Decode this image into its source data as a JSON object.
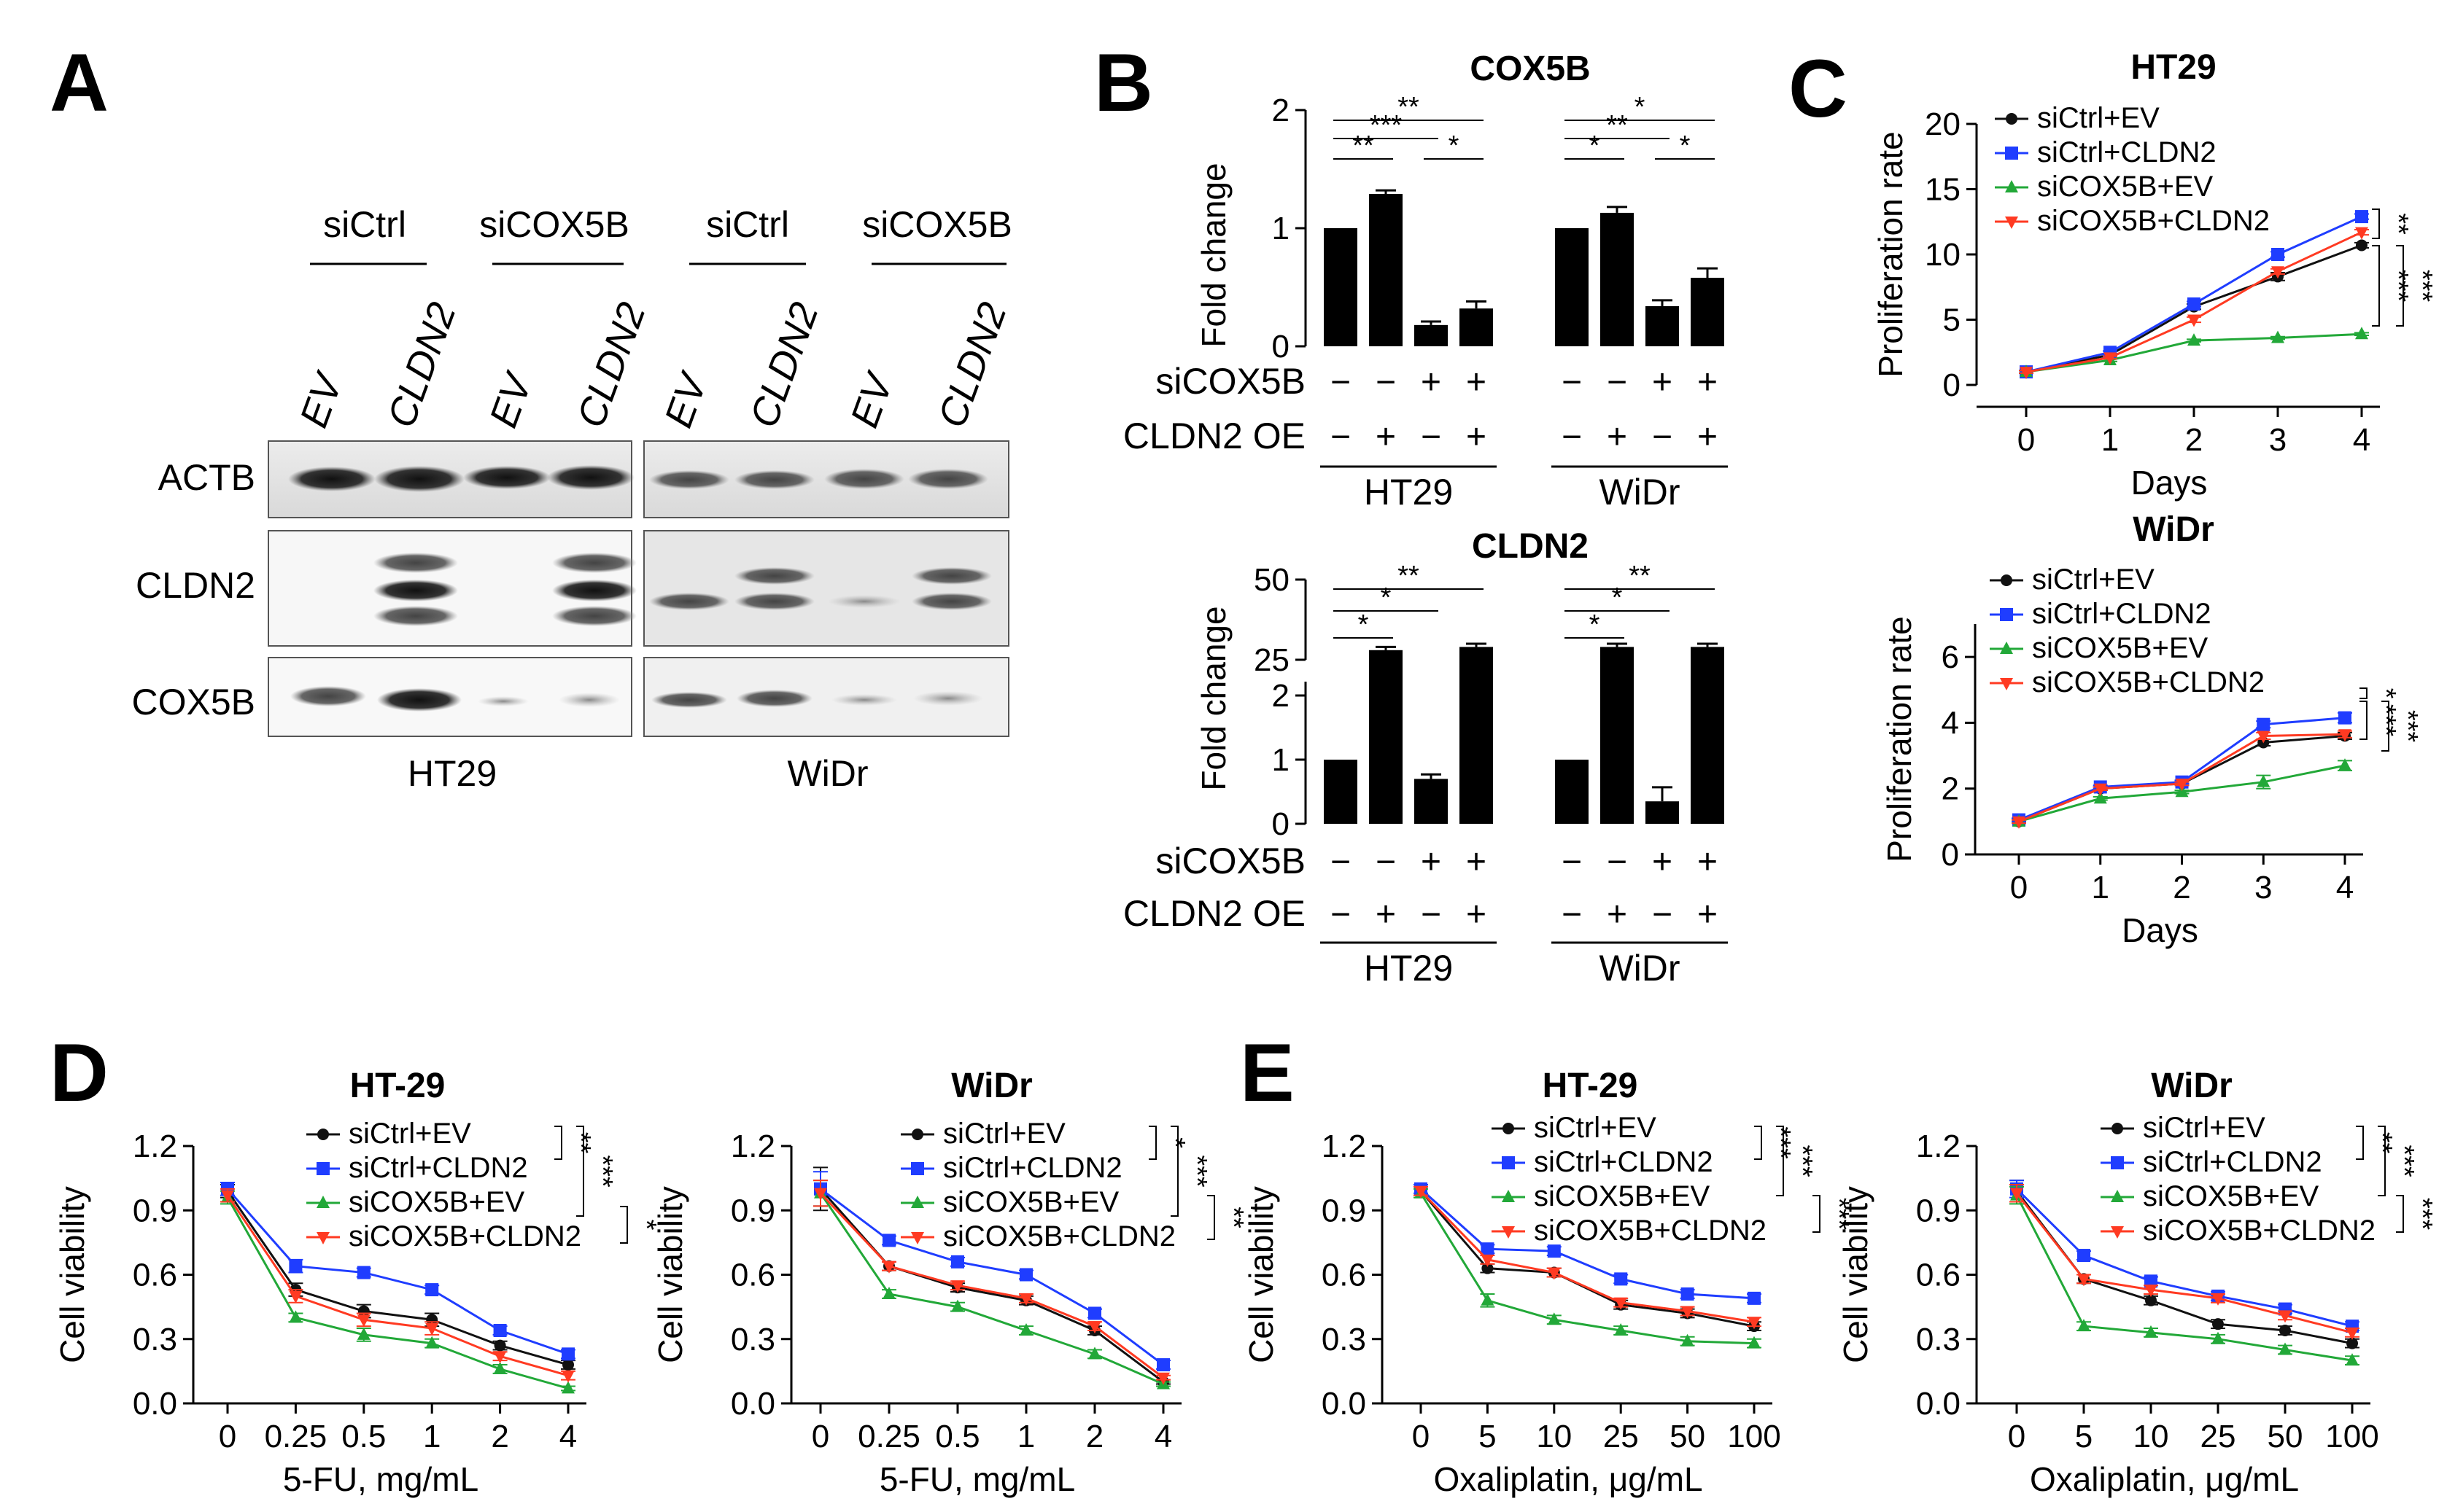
{
  "colors": {
    "siCtrl_EV": "#111111",
    "siCtrl_CLDN2": "#1f3dff",
    "siCOX5B_EV": "#22a838",
    "siCOX5B_CLDN2": "#ff3a22",
    "bar": "#000000"
  },
  "panel_labels": [
    "A",
    "B",
    "C",
    "D",
    "E"
  ],
  "series_names": [
    "siCtrl+EV",
    "siCtrl+CLDN2",
    "siCOX5B+EV",
    "siCOX5B+CLDN2"
  ],
  "blot": {
    "groups": [
      "siCtrl",
      "siCOX5B",
      "siCtrl",
      "siCOX5B"
    ],
    "lanes": [
      "EV",
      "CLDN2",
      "EV",
      "CLDN2",
      "EV",
      "CLDN2",
      "EV",
      "CLDN2"
    ],
    "rows": [
      "ACTB",
      "CLDN2",
      "COX5B"
    ],
    "cell_lines": [
      "HT29",
      "WiDr"
    ]
  },
  "chart_data": [
    {
      "id": "B1",
      "type": "bar",
      "title": "COX5B",
      "ylabel": "Fold change",
      "ylim": [
        0,
        2
      ],
      "yticks": [
        "0",
        "1",
        "2"
      ],
      "groups": [
        {
          "name": "HT29",
          "values": [
            1.0,
            1.29,
            0.18,
            0.32
          ],
          "errors": [
            0,
            0.03,
            0.03,
            0.06
          ]
        },
        {
          "name": "WiDr",
          "values": [
            1.0,
            1.13,
            0.34,
            0.58
          ],
          "errors": [
            0,
            0.05,
            0.05,
            0.08
          ]
        }
      ],
      "row_labels": [
        "siCOX5B",
        "CLDN2 OE"
      ],
      "sicox5b_signs": [
        "−",
        "−",
        "+",
        "+"
      ],
      "oe_signs": [
        "−",
        "+",
        "−",
        "+"
      ],
      "sig": {
        "HT29": [
          "**",
          "***",
          "**",
          "*"
        ],
        "WiDr": [
          "*",
          "**",
          "*",
          "*"
        ]
      }
    },
    {
      "id": "B2",
      "type": "bar",
      "title": "CLDN2",
      "ylabel": "Fold change",
      "ylim": [
        0,
        50
      ],
      "yticks_lower": [
        "0",
        "1",
        "2"
      ],
      "yticks_upper": [
        "25",
        "50"
      ],
      "groups": [
        {
          "name": "HT29",
          "values": [
            1.0,
            28,
            0.7,
            29
          ],
          "errors": [
            0,
            1,
            0.07,
            1
          ]
        },
        {
          "name": "WiDr",
          "values": [
            1.0,
            29,
            0.35,
            29
          ],
          "errors": [
            0,
            1,
            0.22,
            1
          ]
        }
      ],
      "row_labels": [
        "siCOX5B",
        "CLDN2 OE"
      ],
      "sicox5b_signs": [
        "−",
        "−",
        "+",
        "+"
      ],
      "oe_signs": [
        "−",
        "+",
        "−",
        "+"
      ],
      "sig": {
        "HT29": [
          "**",
          "*",
          "*"
        ],
        "WiDr": [
          "**",
          "*",
          "*"
        ]
      }
    },
    {
      "id": "C1",
      "type": "line",
      "title": "HT29",
      "xlabel": "Days",
      "ylabel": "Proliferation rate",
      "x": [
        "0",
        "1",
        "2",
        "3",
        "4"
      ],
      "ylim": [
        0,
        20
      ],
      "yticks": [
        "0",
        "5",
        "10",
        "15",
        "20"
      ],
      "series": [
        {
          "name": "siCtrl+EV",
          "values": [
            1.0,
            2.3,
            6.0,
            8.3,
            10.7
          ],
          "errors": [
            0.1,
            0.1,
            0.2,
            0.3,
            0.2
          ]
        },
        {
          "name": "siCtrl+CLDN2",
          "values": [
            1.0,
            2.5,
            6.2,
            10.0,
            12.9
          ],
          "errors": [
            0.1,
            0.1,
            0.2,
            0.2,
            0.2
          ]
        },
        {
          "name": "siCOX5B+EV",
          "values": [
            1.0,
            1.9,
            3.4,
            3.6,
            3.9
          ],
          "errors": [
            0.1,
            0.1,
            0.1,
            0.1,
            0.1
          ]
        },
        {
          "name": "siCOX5B+CLDN2",
          "values": [
            1.0,
            2.1,
            5.0,
            8.7,
            11.7
          ],
          "errors": [
            0.1,
            0.1,
            0.2,
            0.2,
            0.2
          ]
        }
      ],
      "sig": [
        "**",
        "***",
        "***"
      ]
    },
    {
      "id": "C2",
      "type": "line",
      "title": "WiDr",
      "xlabel": "Days",
      "ylabel": "Proliferation rate",
      "x": [
        "0",
        "1",
        "2",
        "3",
        "4"
      ],
      "ylim": [
        0,
        7
      ],
      "yticks": [
        "0",
        "2",
        "4",
        "6"
      ],
      "series": [
        {
          "name": "siCtrl+EV",
          "values": [
            1.0,
            2.0,
            2.15,
            3.4,
            3.6
          ],
          "errors": [
            0.05,
            0.05,
            0.05,
            0.1,
            0.1
          ]
        },
        {
          "name": "siCtrl+CLDN2",
          "values": [
            1.05,
            2.05,
            2.2,
            3.95,
            4.15
          ],
          "errors": [
            0.05,
            0.05,
            0.05,
            0.1,
            0.15
          ]
        },
        {
          "name": "siCOX5B+EV",
          "values": [
            1.0,
            1.7,
            1.9,
            2.2,
            2.7
          ],
          "errors": [
            0.05,
            0.05,
            0.05,
            0.2,
            0.15
          ]
        },
        {
          "name": "siCOX5B+CLDN2",
          "values": [
            1.0,
            2.0,
            2.15,
            3.6,
            3.65
          ],
          "errors": [
            0.05,
            0.05,
            0.05,
            0.1,
            0.1
          ]
        }
      ],
      "sig": [
        "*",
        "***",
        "***"
      ]
    },
    {
      "id": "D1",
      "type": "line",
      "title": "HT-29",
      "xlabel": "5-FU, mg/mL",
      "ylabel": "Cell viability",
      "x": [
        "0",
        "0.25",
        "0.5",
        "1",
        "2",
        "4"
      ],
      "ylim": [
        0,
        1.2
      ],
      "yticks": [
        "0.0",
        "0.3",
        "0.6",
        "0.9",
        "1.2"
      ],
      "series": [
        {
          "name": "siCtrl+EV",
          "values": [
            0.99,
            0.53,
            0.43,
            0.39,
            0.27,
            0.18
          ],
          "errors": [
            0.03,
            0.03,
            0.03,
            0.03,
            0.02,
            0.02
          ]
        },
        {
          "name": "siCtrl+CLDN2",
          "values": [
            1.0,
            0.64,
            0.61,
            0.53,
            0.34,
            0.23
          ],
          "errors": [
            0.03,
            0.03,
            0.02,
            0.02,
            0.02,
            0.02
          ]
        },
        {
          "name": "siCOX5B+EV",
          "values": [
            0.96,
            0.4,
            0.32,
            0.28,
            0.16,
            0.07
          ],
          "errors": [
            0.03,
            0.02,
            0.03,
            0.02,
            0.02,
            0.01
          ]
        },
        {
          "name": "siCOX5B+CLDN2",
          "values": [
            0.97,
            0.5,
            0.39,
            0.35,
            0.22,
            0.13
          ],
          "errors": [
            0.03,
            0.03,
            0.03,
            0.03,
            0.02,
            0.02
          ]
        }
      ],
      "sig": [
        "**",
        "***",
        "*"
      ]
    },
    {
      "id": "D2",
      "type": "line",
      "title": "WiDr",
      "xlabel": "5-FU, mg/mL",
      "ylabel": "Cell viability",
      "x": [
        "0",
        "0.25",
        "0.5",
        "1",
        "2",
        "4"
      ],
      "ylim": [
        0,
        1.2
      ],
      "yticks": [
        "0.0",
        "0.3",
        "0.6",
        "0.9",
        "1.2"
      ],
      "series": [
        {
          "name": "siCtrl+EV",
          "values": [
            1.0,
            0.64,
            0.54,
            0.48,
            0.34,
            0.1
          ],
          "errors": [
            0.1,
            0.02,
            0.02,
            0.02,
            0.02,
            0.01
          ]
        },
        {
          "name": "siCtrl+CLDN2",
          "values": [
            1.0,
            0.76,
            0.66,
            0.6,
            0.42,
            0.18
          ],
          "errors": [
            0.08,
            0.02,
            0.02,
            0.02,
            0.02,
            0.02
          ]
        },
        {
          "name": "siCOX5B+EV",
          "values": [
            0.98,
            0.51,
            0.45,
            0.34,
            0.23,
            0.09
          ],
          "errors": [
            0.06,
            0.02,
            0.02,
            0.02,
            0.02,
            0.01
          ]
        },
        {
          "name": "siCOX5B+CLDN2",
          "values": [
            0.98,
            0.64,
            0.55,
            0.49,
            0.36,
            0.12
          ],
          "errors": [
            0.06,
            0.02,
            0.02,
            0.02,
            0.02,
            0.01
          ]
        }
      ],
      "sig": [
        "*",
        "***",
        "**"
      ]
    },
    {
      "id": "E1",
      "type": "line",
      "title": "HT-29",
      "xlabel": "Oxaliplatin, μg/mL",
      "ylabel": "Cell viability",
      "x": [
        "0",
        "5",
        "10",
        "25",
        "50",
        "100"
      ],
      "ylim": [
        0,
        1.2
      ],
      "yticks": [
        "0.0",
        "0.3",
        "0.6",
        "0.9",
        "1.2"
      ],
      "series": [
        {
          "name": "siCtrl+EV",
          "values": [
            0.99,
            0.63,
            0.61,
            0.46,
            0.42,
            0.36
          ],
          "errors": [
            0.02,
            0.02,
            0.02,
            0.02,
            0.02,
            0.02
          ]
        },
        {
          "name": "siCtrl+CLDN2",
          "values": [
            1.0,
            0.72,
            0.71,
            0.58,
            0.51,
            0.49
          ],
          "errors": [
            0.02,
            0.02,
            0.02,
            0.02,
            0.02,
            0.02
          ]
        },
        {
          "name": "siCOX5B+EV",
          "values": [
            0.98,
            0.48,
            0.39,
            0.34,
            0.29,
            0.28
          ],
          "errors": [
            0.02,
            0.03,
            0.02,
            0.02,
            0.02,
            0.02
          ]
        },
        {
          "name": "siCOX5B+CLDN2",
          "values": [
            0.99,
            0.67,
            0.61,
            0.47,
            0.43,
            0.38
          ],
          "errors": [
            0.02,
            0.02,
            0.02,
            0.02,
            0.02,
            0.02
          ]
        }
      ],
      "sig": [
        "***",
        "***",
        "***"
      ]
    },
    {
      "id": "E2",
      "type": "line",
      "title": "WiDr",
      "xlabel": "Oxaliplatin, μg/mL",
      "ylabel": "Cell viability",
      "x": [
        "0",
        "5",
        "10",
        "25",
        "50",
        "100"
      ],
      "ylim": [
        0,
        1.2
      ],
      "yticks": [
        "0.0",
        "0.3",
        "0.6",
        "0.9",
        "1.2"
      ],
      "series": [
        {
          "name": "siCtrl+EV",
          "values": [
            0.99,
            0.58,
            0.48,
            0.37,
            0.34,
            0.28
          ],
          "errors": [
            0.05,
            0.02,
            0.02,
            0.02,
            0.02,
            0.02
          ]
        },
        {
          "name": "siCtrl+CLDN2",
          "values": [
            1.0,
            0.69,
            0.57,
            0.5,
            0.44,
            0.36
          ],
          "errors": [
            0.04,
            0.02,
            0.02,
            0.02,
            0.02,
            0.02
          ]
        },
        {
          "name": "siCOX5B+EV",
          "values": [
            0.97,
            0.36,
            0.33,
            0.3,
            0.25,
            0.2
          ],
          "errors": [
            0.04,
            0.02,
            0.02,
            0.02,
            0.02,
            0.02
          ]
        },
        {
          "name": "siCOX5B+CLDN2",
          "values": [
            0.98,
            0.58,
            0.53,
            0.49,
            0.41,
            0.33
          ],
          "errors": [
            0.04,
            0.02,
            0.02,
            0.02,
            0.02,
            0.02
          ]
        }
      ],
      "sig": [
        "**",
        "***",
        "***"
      ]
    }
  ]
}
